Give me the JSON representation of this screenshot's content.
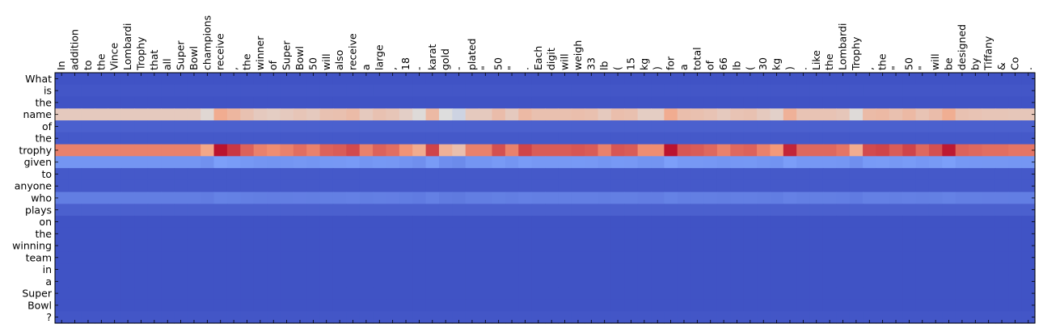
{
  "chart_data": {
    "type": "heatmap",
    "colormap": "coolwarm",
    "x_tokens": [
      "In",
      "addition",
      "to",
      "the",
      "Vince",
      "Lombardi",
      "Trophy",
      "that",
      "all",
      "Super",
      "Bowl",
      "champions",
      "receive",
      ",",
      "the",
      "winner",
      "of",
      "Super",
      "Bowl",
      "50",
      "will",
      "also",
      "receive",
      "a",
      "large",
      ",",
      "18",
      "-",
      "karat",
      "gold",
      "-",
      "plated",
      "\"",
      "50",
      "\"",
      ".",
      "Each",
      "digit",
      "will",
      "weigh",
      "33",
      "lb",
      "(",
      "15",
      "kg",
      ")",
      "for",
      "a",
      "total",
      "of",
      "66",
      "lb",
      "(",
      "30",
      "kg",
      ")",
      ".",
      "Like",
      "the",
      "Lombardi",
      "Trophy",
      ",",
      "the",
      "\"",
      "50",
      "\"",
      "will",
      "be",
      "designed",
      "by",
      "Tiffany",
      "&",
      "Co",
      "."
    ],
    "y_tokens": [
      "What",
      "is",
      "the",
      "name",
      "of",
      "the",
      "trophy",
      "given",
      "to",
      "anyone",
      "who",
      "plays",
      "on",
      "the",
      "winning",
      "team",
      "in",
      "a",
      "Super",
      "Bowl",
      "?"
    ],
    "row_levels": [
      0.02,
      0.03,
      0.02,
      0.58,
      0.06,
      0.04,
      0.8,
      0.22,
      0.04,
      0.04,
      0.15,
      0.06,
      0.02,
      0.02,
      0.02,
      0.02,
      0.02,
      0.02,
      0.02,
      0.02,
      0.03
    ],
    "col_adjust": [
      0,
      0,
      0,
      0,
      0,
      0,
      0,
      0,
      0,
      0,
      0,
      -0.08,
      0.18,
      0.12,
      0.05,
      0,
      -0.02,
      0,
      0.03,
      0,
      0.05,
      0.06,
      0.09,
      0,
      0.05,
      0.03,
      -0.03,
      -0.1,
      0.1,
      -0.12,
      -0.18,
      0,
      0,
      0.08,
      0,
      0.1,
      0.06,
      0.06,
      0.06,
      0.07,
      0.06,
      0,
      0.07,
      0.06,
      -0.02,
      -0.02,
      0.18,
      0.07,
      0.06,
      0.04,
      0,
      0.04,
      0.05,
      0,
      -0.04,
      0.15,
      0.04,
      0.04,
      0.04,
      0.02,
      -0.1,
      0.09,
      0.1,
      0.06,
      0.1,
      0.04,
      0.08,
      0.17,
      0.05,
      0.04,
      0.03,
      0.03,
      0.02,
      0.02
    ]
  }
}
